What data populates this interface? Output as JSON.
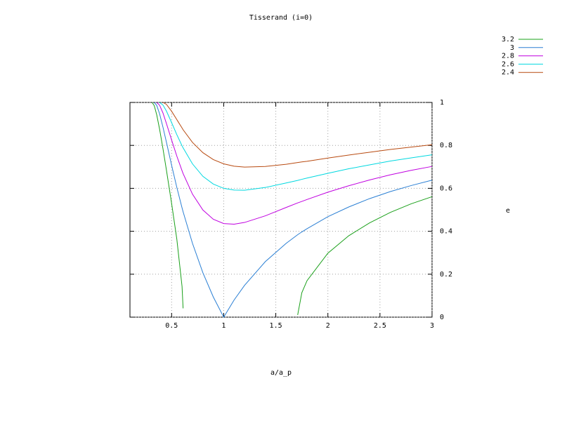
{
  "chart_data": {
    "type": "line",
    "title": "Tisserand (i=0)",
    "xlabel": "a/a_p",
    "ylabel": "e",
    "x": [
      0.3125,
      0.3333,
      0.3571,
      0.3846,
      0.4167,
      0.45,
      0.5,
      0.55,
      0.6,
      0.61,
      0.7,
      0.8,
      0.9,
      1,
      1.1,
      1.2,
      1.4,
      1.6,
      1.71,
      1.75,
      1.8,
      2,
      2.2,
      2.4,
      2.6,
      2.8,
      3
    ],
    "series": [
      {
        "name": "3.2",
        "color": "#1aa01a",
        "values": [
          1,
          0.985,
          0.942,
          0.875,
          0.785,
          0.685,
          0.529,
          0.363,
          0.143,
          0.041,
          null,
          null,
          null,
          null,
          null,
          null,
          null,
          null,
          0.01,
          0.114,
          0.17,
          0.298,
          0.379,
          0.439,
          0.488,
          0.528,
          0.561
        ]
      },
      {
        "name": "3",
        "color": "#2a7fd4",
        "values": [
          null,
          1,
          0.986,
          0.947,
          0.885,
          0.815,
          0.707,
          0.604,
          0.509,
          0.491,
          0.344,
          0.207,
          0.094,
          0,
          0.08,
          0.148,
          0.259,
          0.344,
          0.384,
          0.397,
          0.412,
          0.468,
          0.513,
          0.552,
          0.585,
          0.613,
          0.638
        ]
      },
      {
        "name": "2.8",
        "color": "#c000e0",
        "values": [
          null,
          null,
          1,
          0.987,
          0.951,
          0.902,
          0.825,
          0.75,
          0.682,
          0.669,
          0.573,
          0.499,
          0.456,
          0.436,
          0.433,
          0.441,
          0.472,
          0.511,
          0.532,
          0.539,
          0.548,
          0.582,
          0.612,
          0.639,
          0.663,
          0.684,
          0.702
        ]
      },
      {
        "name": "2.6",
        "color": "#00d8e0",
        "values": [
          null,
          null,
          null,
          1,
          0.988,
          0.96,
          0.906,
          0.85,
          0.798,
          0.789,
          0.714,
          0.656,
          0.62,
          0.6,
          0.592,
          0.591,
          0.604,
          0.625,
          0.637,
          0.642,
          0.648,
          0.67,
          0.691,
          0.709,
          0.727,
          0.742,
          0.756
        ]
      },
      {
        "name": "2.4",
        "color": "#b84a10",
        "values": [
          null,
          null,
          null,
          null,
          1,
          0.991,
          0.959,
          0.92,
          0.881,
          0.873,
          0.814,
          0.766,
          0.734,
          0.714,
          0.703,
          0.699,
          0.702,
          0.712,
          0.72,
          0.723,
          0.726,
          0.741,
          0.755,
          0.768,
          0.781,
          0.792,
          0.803
        ]
      }
    ],
    "xlim": [
      0.1,
      3
    ],
    "ylim": [
      0,
      1
    ],
    "xticks": [
      0.5,
      1,
      1.5,
      2,
      2.5,
      3
    ],
    "yticks": [
      0,
      0.2,
      0.4,
      0.6,
      0.8,
      1
    ],
    "grid": true
  }
}
